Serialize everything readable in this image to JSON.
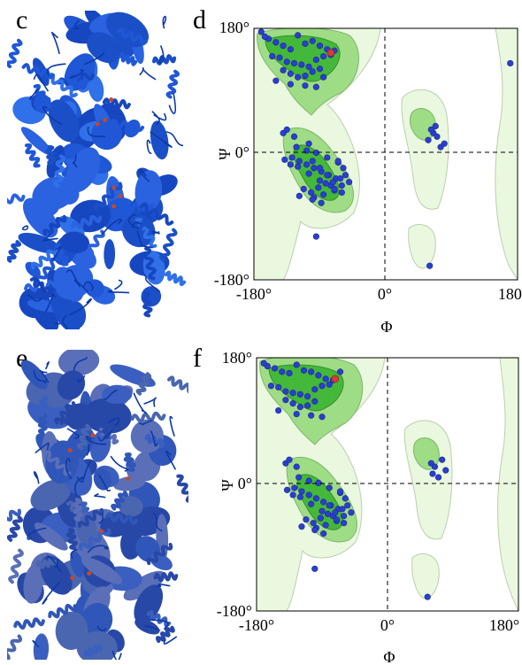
{
  "panels": {
    "c": "c",
    "d": "d",
    "e": "e",
    "f": "f"
  },
  "plot_top": {
    "xlabel": "Φ",
    "ylabel": "Ψ",
    "xticks": [
      "-180°",
      "0°",
      "180°"
    ],
    "yticks": [
      "180°",
      "0°",
      "-180°"
    ]
  },
  "plot_bottom": {
    "xlabel": "Φ",
    "ylabel": "Ψ",
    "xticks": [
      "-180°",
      "0°",
      "180°"
    ],
    "yticks": [
      "180°",
      "0°",
      "-180°"
    ]
  },
  "colors": {
    "protein": "#1f57d6",
    "ligand": "#c04a2a",
    "region_light": "#eaf8e0",
    "region_mid": "#9fdc86",
    "region_core": "#44b83a",
    "point": "#2a3fcf",
    "outlier": "#d63a3a"
  },
  "chart_data": [
    {
      "type": "scatter",
      "title": "",
      "xlabel": "Φ",
      "ylabel": "Ψ",
      "xlim": [
        -180,
        180
      ],
      "ylim": [
        -180,
        180
      ],
      "grid": false,
      "reference_lines": [
        {
          "axis": "x",
          "value": 0
        },
        {
          "axis": "y",
          "value": 0
        }
      ],
      "series": [
        {
          "x": [
            -160,
            -150,
            -140,
            -130,
            -120,
            -110,
            -100,
            -90,
            -80,
            -70,
            -155,
            -145,
            -135,
            -125,
            -115,
            -105,
            -95,
            -85,
            -75,
            -140,
            -130,
            -120,
            -110,
            -100,
            -90,
            -150,
            -130,
            -110,
            -95,
            -85,
            -170,
            -165,
            -128,
            -118,
            -108,
            -98,
            -88,
            -78,
            -68,
            -138,
            -120,
            -105,
            -90,
            -75,
            -112,
            -102,
            -92,
            -82,
            -72,
            -62,
            -118,
            -98,
            -85,
            -70,
            -60,
            -108,
            -95,
            -80,
            -65,
            -140,
            -135,
            -125,
            -122,
            -130,
            -105,
            -100,
            -88,
            -55,
            -50,
            -58,
            -65,
            -60,
            -70,
            -80,
            -90,
            -100,
            65,
            70,
            75,
            62,
            80,
            58,
            68,
            -95,
            60,
            170
          ],
          "y": [
            165,
            160,
            155,
            150,
            170,
            158,
            162,
            155,
            150,
            148,
            140,
            138,
            132,
            130,
            128,
            125,
            135,
            140,
            142,
            120,
            115,
            110,
            112,
            118,
            122,
            105,
            100,
            98,
            96,
            110,
            175,
            168,
            -5,
            -10,
            -15,
            -20,
            -25,
            -30,
            -35,
            -8,
            -18,
            -28,
            -38,
            -45,
            -50,
            -55,
            -48,
            -42,
            -40,
            -35,
            -60,
            -62,
            -58,
            -52,
            -45,
            5,
            2,
            -5,
            -12,
            30,
            35,
            25,
            10,
            -15,
            15,
            -65,
            -70,
            -30,
            -40,
            -20,
            -10,
            -55,
            -50,
            -30,
            -20,
            -10,
            30,
            25,
            10,
            35,
            15,
            20,
            40,
            -118,
            -160,
            130
          ]
        },
        {
          "name": "",
          "x": [
            -75
          ],
          "y": [
            145
          ]
        }
      ]
    },
    {
      "type": "scatter",
      "title": "",
      "xlabel": "Φ",
      "ylabel": "Ψ",
      "xlim": [
        -180,
        180
      ],
      "ylim": [
        -180,
        180
      ],
      "grid": false,
      "reference_lines": [
        {
          "axis": "x",
          "value": 0
        },
        {
          "axis": "y",
          "value": 0
        }
      ],
      "series": [
        {
          "x": [
            -165,
            -155,
            -145,
            -135,
            -125,
            -115,
            -105,
            -95,
            -85,
            -75,
            -65,
            -160,
            -150,
            -140,
            -130,
            -120,
            -110,
            -100,
            -90,
            -80,
            -140,
            -130,
            -120,
            -110,
            -100,
            -150,
            -125,
            -105,
            -90,
            -170,
            -128,
            -118,
            -108,
            -98,
            -88,
            -78,
            -68,
            -138,
            -120,
            -105,
            -90,
            -75,
            -112,
            -102,
            -92,
            -82,
            -72,
            -62,
            -118,
            -98,
            -85,
            -70,
            -60,
            -108,
            -95,
            -80,
            -65,
            -140,
            -135,
            -125,
            -122,
            -130,
            -100,
            -88,
            -55,
            -50,
            -58,
            -65,
            -60,
            -70,
            -80,
            60,
            65,
            70,
            75,
            62,
            80,
            -100,
            55
          ],
          "y": [
            168,
            165,
            160,
            158,
            170,
            162,
            160,
            155,
            150,
            148,
            160,
            140,
            138,
            132,
            130,
            128,
            125,
            135,
            140,
            142,
            120,
            115,
            110,
            112,
            118,
            105,
            100,
            98,
            96,
            172,
            -5,
            -10,
            -15,
            -20,
            -25,
            -30,
            -35,
            -8,
            -18,
            -28,
            -38,
            -45,
            -50,
            -55,
            -48,
            -42,
            -40,
            -35,
            -60,
            -62,
            -58,
            -52,
            -45,
            5,
            2,
            -5,
            -12,
            30,
            35,
            25,
            10,
            -15,
            -65,
            -70,
            -30,
            -40,
            -20,
            -10,
            -55,
            -50,
            -30,
            30,
            25,
            10,
            35,
            15,
            20,
            -120,
            -160
          ]
        },
        {
          "name": "",
          "x": [
            -72
          ],
          "y": [
            150
          ]
        }
      ]
    }
  ]
}
